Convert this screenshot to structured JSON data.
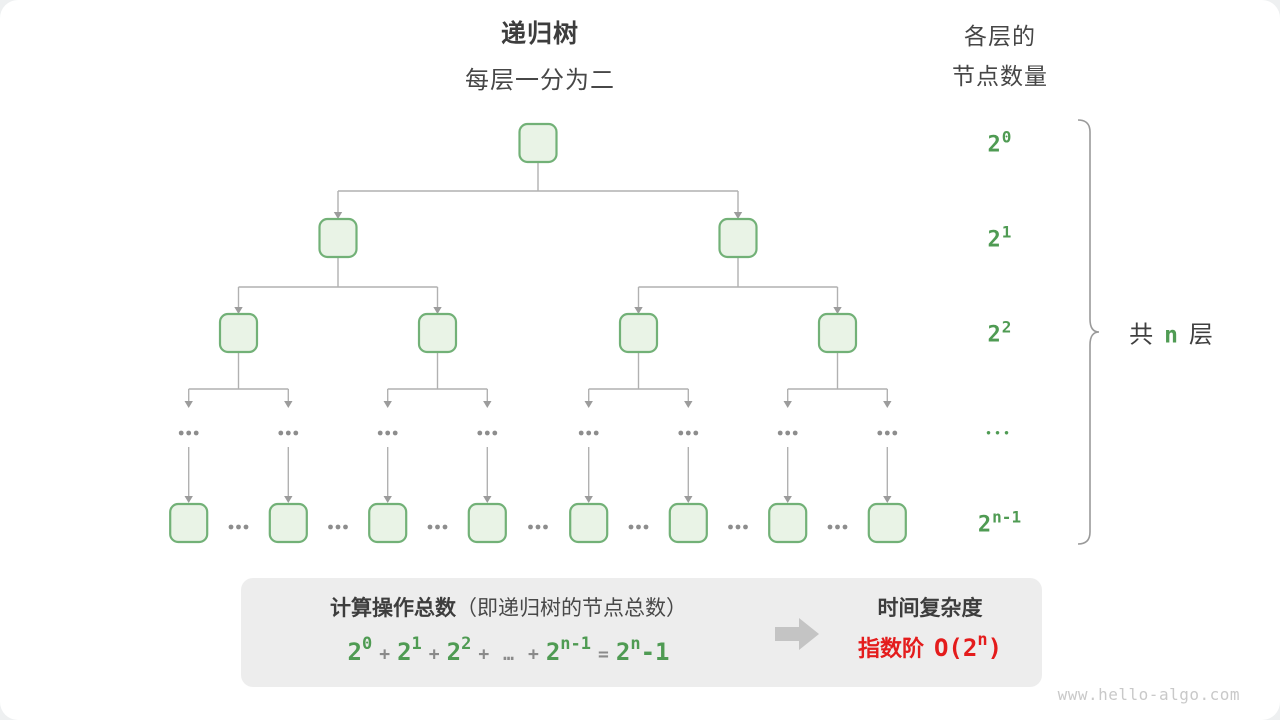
{
  "header": {
    "title": "递归树",
    "subtitle": "每层一分为二",
    "right_title": [
      "各层的",
      "节点数量"
    ]
  },
  "chart_data": {
    "type": "table",
    "title": "递归树（每层一分为二）",
    "tree": {
      "branching_factor": 2,
      "levels": [
        {
          "nodes": 1,
          "label": {
            "base": "2",
            "sup": "0"
          }
        },
        {
          "nodes": 2,
          "label": {
            "base": "2",
            "sup": "1"
          }
        },
        {
          "nodes": 4,
          "label": {
            "base": "2",
            "sup": "2"
          }
        },
        {
          "nodes": 8,
          "dots_row": true,
          "label": {
            "dots": true
          }
        },
        {
          "nodes": 8,
          "interleaved_dots": true,
          "label": {
            "base": "2",
            "sup": "n-1"
          }
        }
      ]
    }
  },
  "brace": {
    "prefix": "共",
    "var": "n",
    "suffix": "层"
  },
  "summary": {
    "title_bold": "计算操作总数",
    "title_note": "（即递归树的节点总数）",
    "formula": [
      {
        "base": "2",
        "sup": "0"
      },
      {
        "op": "+"
      },
      {
        "base": "2",
        "sup": "1"
      },
      {
        "op": "+"
      },
      {
        "base": "2",
        "sup": "2"
      },
      {
        "op": "+"
      },
      {
        "op": "…"
      },
      {
        "op": "+"
      },
      {
        "base": "2",
        "sup": "n-1"
      },
      {
        "op": "="
      },
      {
        "base": "2",
        "sup": "n",
        "tail": "-1"
      }
    ],
    "result_title": "时间复杂度",
    "result_prefix": "指数阶",
    "result_value": {
      "pre": "O(2",
      "sup": "n",
      "post": ")"
    }
  },
  "watermark": "www.hello-algo.com",
  "colors": {
    "green_text": "#4f9b53",
    "node_fill": "#e9f3e6",
    "node_stroke": "#72b177",
    "line": "#b1b1b1",
    "arrow": "#9c9c9c",
    "dots": "#8d8d8d",
    "brace": "#9a9a9a",
    "block_arrow": "#c4c4c4",
    "red": "#e41c1c",
    "panel": "#ededed"
  }
}
